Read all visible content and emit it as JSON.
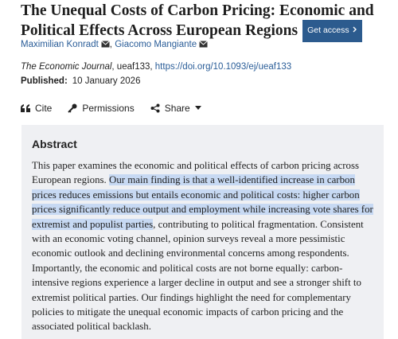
{
  "header": {
    "title": "The Unequal Costs of Carbon Pricing: Economic and Political Effects Across European Regions",
    "access_button": "Get access"
  },
  "authors": [
    "Maximilian Konradt",
    "Giacomo Mangiante"
  ],
  "citation": {
    "journal": "The Economic Journal",
    "article_id": ", ueaf133, ",
    "doi": "https://doi.org/10.1093/ej/ueaf133"
  },
  "published": {
    "label": "Published:",
    "date": "10 January 2026"
  },
  "actions": [
    "Cite",
    "Permissions",
    "Share"
  ],
  "abstract": {
    "heading": "Abstract",
    "before": "This paper examines the economic and political effects of carbon pricing across European regions. ",
    "highlighted": "Our main finding is that a well-identified increase in carbon prices reduces emissions but entails economic and political costs: higher carbon prices significantly reduce output and employment while increasing vote shares for extremist and populist parties",
    "after": ", contributing to political fragmentation. Consistent with an economic voting channel, opinion surveys reveal a more pessimistic economic outlook and declining environmental concerns among respondents. Importantly, the economic and political costs are not borne equally: carbon-intensive regions experience a larger decline in output and see a stronger shift to extremist political parties. Our findings highlight the need for complementary policies to mitigate the unequal economic impacts of carbon pricing and the associated political backlash."
  }
}
